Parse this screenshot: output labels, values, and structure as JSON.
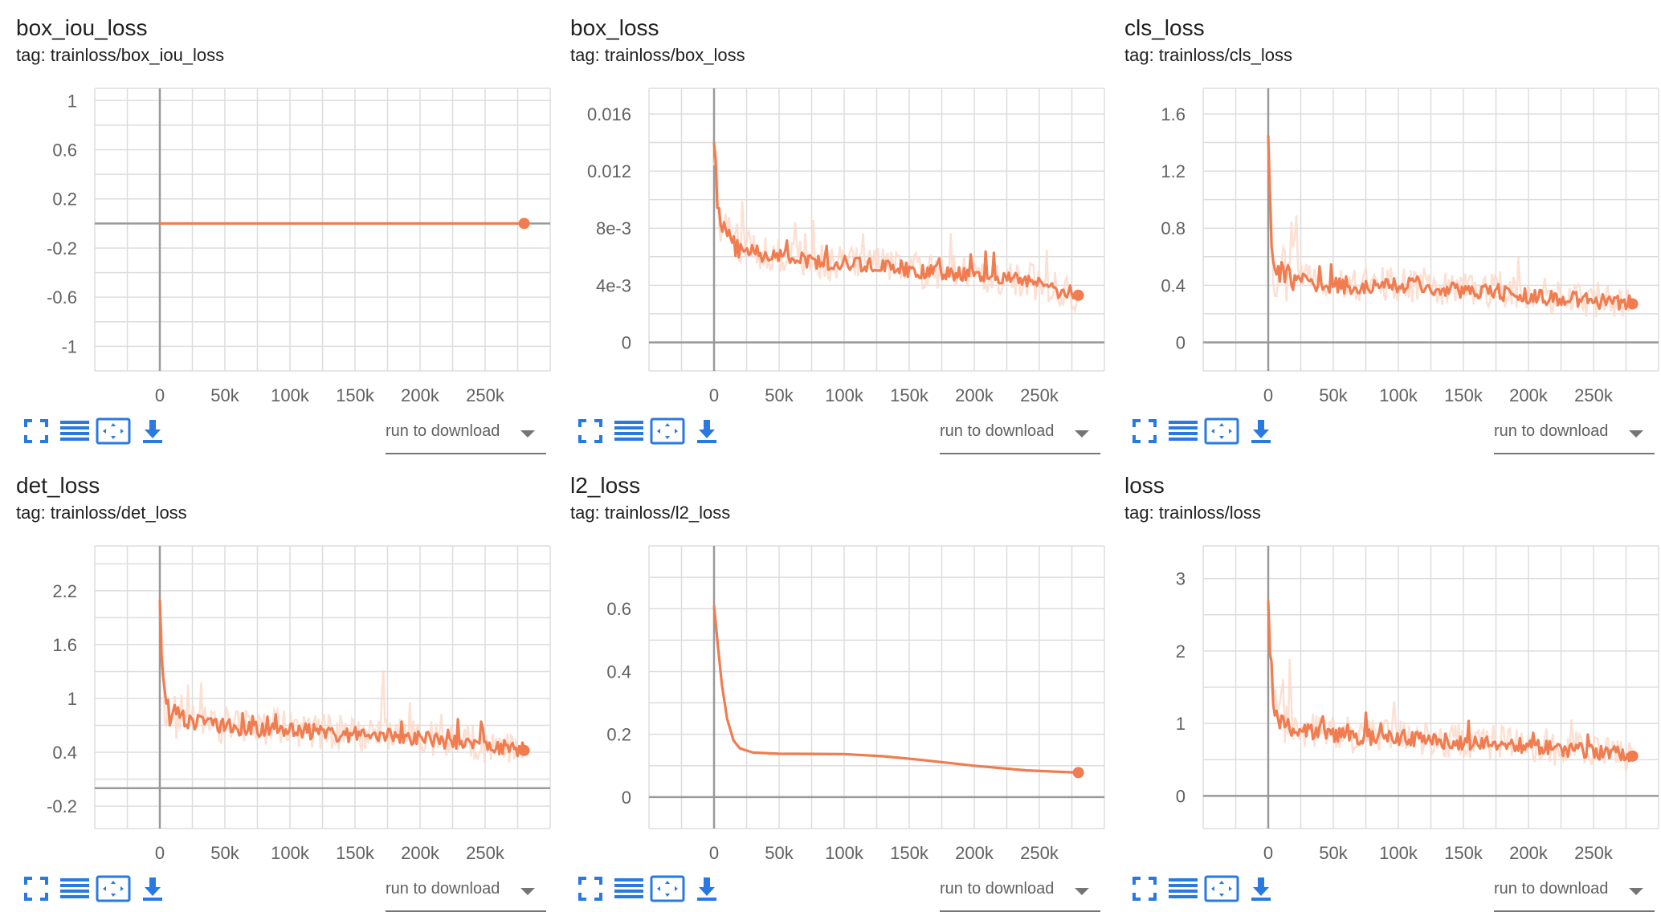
{
  "toolbar": {
    "fullscreen_icon": "fullscreen-icon",
    "list_icon": "list-icon",
    "fit_icon": "fit-domain-icon",
    "download_icon": "download-icon",
    "download_label": "run to download"
  },
  "colors": {
    "line": "#f07c50",
    "raw": "#fbd8c8",
    "grid": "#dddddd",
    "axis": "#999999",
    "icon": "#2979e3"
  },
  "cards": [
    {
      "title": "box_iou_loss",
      "tag_prefix": "tag:",
      "tag": "trainloss/box_iou_loss"
    },
    {
      "title": "box_loss",
      "tag_prefix": "tag:",
      "tag": "trainloss/box_loss"
    },
    {
      "title": "cls_loss",
      "tag_prefix": "tag:",
      "tag": "trainloss/cls_loss"
    },
    {
      "title": "det_loss",
      "tag_prefix": "tag:",
      "tag": "trainloss/det_loss"
    },
    {
      "title": "l2_loss",
      "tag_prefix": "tag:",
      "tag": "trainloss/l2_loss"
    },
    {
      "title": "loss",
      "tag_prefix": "tag:",
      "tag": "trainloss/loss"
    }
  ],
  "chart_data": [
    {
      "type": "line",
      "title": "box_iou_loss",
      "xlim": [
        -50000,
        300000
      ],
      "ylim": [
        -1.2,
        1.1
      ],
      "xticks": [
        0,
        50000,
        100000,
        150000,
        200000,
        250000
      ],
      "xtick_labels": [
        "0",
        "50k",
        "100k",
        "150k",
        "200k",
        "250k"
      ],
      "yticks": [
        1,
        0.6,
        0.2,
        -0.2,
        -0.6,
        -1
      ],
      "ytick_labels": [
        "1",
        "0.6",
        "0.2",
        "-0.2",
        "-0.6",
        "-1"
      ],
      "series": [
        {
          "points": [
            [
              0,
              0
            ],
            [
              280000,
              0
            ]
          ]
        }
      ],
      "noisy": false
    },
    {
      "type": "line",
      "title": "box_loss",
      "xlim": [
        -50000,
        300000
      ],
      "ylim": [
        -0.002,
        0.0178
      ],
      "xticks": [
        0,
        50000,
        100000,
        150000,
        200000,
        250000
      ],
      "xtick_labels": [
        "0",
        "50k",
        "100k",
        "150k",
        "200k",
        "250k"
      ],
      "yticks": [
        0.016,
        0.012,
        0.008,
        0.004,
        0
      ],
      "ytick_labels": [
        "0.016",
        "0.012",
        "8e-3",
        "4e-3",
        "0"
      ],
      "series": [
        {
          "points": [
            [
              0,
              0.014
            ],
            [
              3000,
              0.0095
            ],
            [
              8000,
              0.0075
            ],
            [
              15000,
              0.0068
            ],
            [
              25000,
              0.0065
            ],
            [
              40000,
              0.006
            ],
            [
              60000,
              0.0058
            ],
            [
              80000,
              0.0055
            ],
            [
              100000,
              0.0055
            ],
            [
              120000,
              0.0053
            ],
            [
              150000,
              0.005
            ],
            [
              180000,
              0.0048
            ],
            [
              200000,
              0.0046
            ],
            [
              230000,
              0.0045
            ],
            [
              250000,
              0.004
            ],
            [
              265000,
              0.0035
            ],
            [
              280000,
              0.0033
            ]
          ]
        }
      ],
      "noisy": true
    },
    {
      "type": "line",
      "title": "cls_loss",
      "xlim": [
        -50000,
        300000
      ],
      "ylim": [
        -0.2,
        1.78
      ],
      "xticks": [
        0,
        50000,
        100000,
        150000,
        200000,
        250000
      ],
      "xtick_labels": [
        "0",
        "50k",
        "100k",
        "150k",
        "200k",
        "250k"
      ],
      "yticks": [
        1.6,
        1.2,
        0.8,
        0.4,
        0
      ],
      "ytick_labels": [
        "1.6",
        "1.2",
        "0.8",
        "0.4",
        "0"
      ],
      "series": [
        {
          "points": [
            [
              0,
              1.45
            ],
            [
              2000,
              0.75
            ],
            [
              5000,
              0.5
            ],
            [
              15000,
              0.45
            ],
            [
              40000,
              0.4
            ],
            [
              70000,
              0.38
            ],
            [
              100000,
              0.4
            ],
            [
              130000,
              0.37
            ],
            [
              160000,
              0.35
            ],
            [
              200000,
              0.32
            ],
            [
              230000,
              0.3
            ],
            [
              260000,
              0.28
            ],
            [
              280000,
              0.27
            ]
          ]
        }
      ],
      "noisy": true
    },
    {
      "type": "line",
      "title": "det_loss",
      "xlim": [
        -50000,
        300000
      ],
      "ylim": [
        -0.45,
        2.7
      ],
      "xticks": [
        0,
        50000,
        100000,
        150000,
        200000,
        250000
      ],
      "xtick_labels": [
        "0",
        "50k",
        "100k",
        "150k",
        "200k",
        "250k"
      ],
      "yticks": [
        2.2,
        1.6,
        1,
        0.4,
        -0.2
      ],
      "ytick_labels": [
        "2.2",
        "1.6",
        "1",
        "0.4",
        "-0.2"
      ],
      "series": [
        {
          "points": [
            [
              0,
              2.1
            ],
            [
              2000,
              1.2
            ],
            [
              5000,
              0.85
            ],
            [
              15000,
              0.75
            ],
            [
              40000,
              0.7
            ],
            [
              70000,
              0.65
            ],
            [
              100000,
              0.65
            ],
            [
              130000,
              0.6
            ],
            [
              160000,
              0.58
            ],
            [
              200000,
              0.55
            ],
            [
              230000,
              0.5
            ],
            [
              260000,
              0.45
            ],
            [
              280000,
              0.42
            ]
          ]
        }
      ],
      "noisy": true
    },
    {
      "type": "line",
      "title": "l2_loss",
      "xlim": [
        -50000,
        300000
      ],
      "ylim": [
        -0.1,
        0.8
      ],
      "xticks": [
        0,
        50000,
        100000,
        150000,
        200000,
        250000
      ],
      "xtick_labels": [
        "0",
        "50k",
        "100k",
        "150k",
        "200k",
        "250k"
      ],
      "yticks": [
        0.6,
        0.4,
        0.2,
        0
      ],
      "ytick_labels": [
        "0.6",
        "0.4",
        "0.2",
        "0"
      ],
      "series": [
        {
          "points": [
            [
              0,
              0.61
            ],
            [
              3000,
              0.48
            ],
            [
              6000,
              0.36
            ],
            [
              10000,
              0.25
            ],
            [
              15000,
              0.18
            ],
            [
              20000,
              0.155
            ],
            [
              30000,
              0.142
            ],
            [
              50000,
              0.138
            ],
            [
              100000,
              0.137
            ],
            [
              130000,
              0.13
            ],
            [
              160000,
              0.118
            ],
            [
              200000,
              0.1
            ],
            [
              240000,
              0.085
            ],
            [
              280000,
              0.078
            ]
          ]
        }
      ],
      "noisy": false
    },
    {
      "type": "line",
      "title": "loss",
      "xlim": [
        -50000,
        300000
      ],
      "ylim": [
        -0.45,
        3.45
      ],
      "xticks": [
        0,
        50000,
        100000,
        150000,
        200000,
        250000
      ],
      "xtick_labels": [
        "0",
        "50k",
        "100k",
        "150k",
        "200k",
        "250k"
      ],
      "yticks": [
        3,
        2,
        1,
        0
      ],
      "ytick_labels": [
        "3",
        "2",
        "1",
        "0"
      ],
      "series": [
        {
          "points": [
            [
              0,
              2.7
            ],
            [
              2000,
              1.6
            ],
            [
              5000,
              1.1
            ],
            [
              15000,
              0.95
            ],
            [
              40000,
              0.85
            ],
            [
              70000,
              0.8
            ],
            [
              100000,
              0.8
            ],
            [
              130000,
              0.75
            ],
            [
              160000,
              0.72
            ],
            [
              200000,
              0.68
            ],
            [
              230000,
              0.63
            ],
            [
              260000,
              0.58
            ],
            [
              280000,
              0.55
            ]
          ]
        }
      ],
      "noisy": true
    }
  ]
}
